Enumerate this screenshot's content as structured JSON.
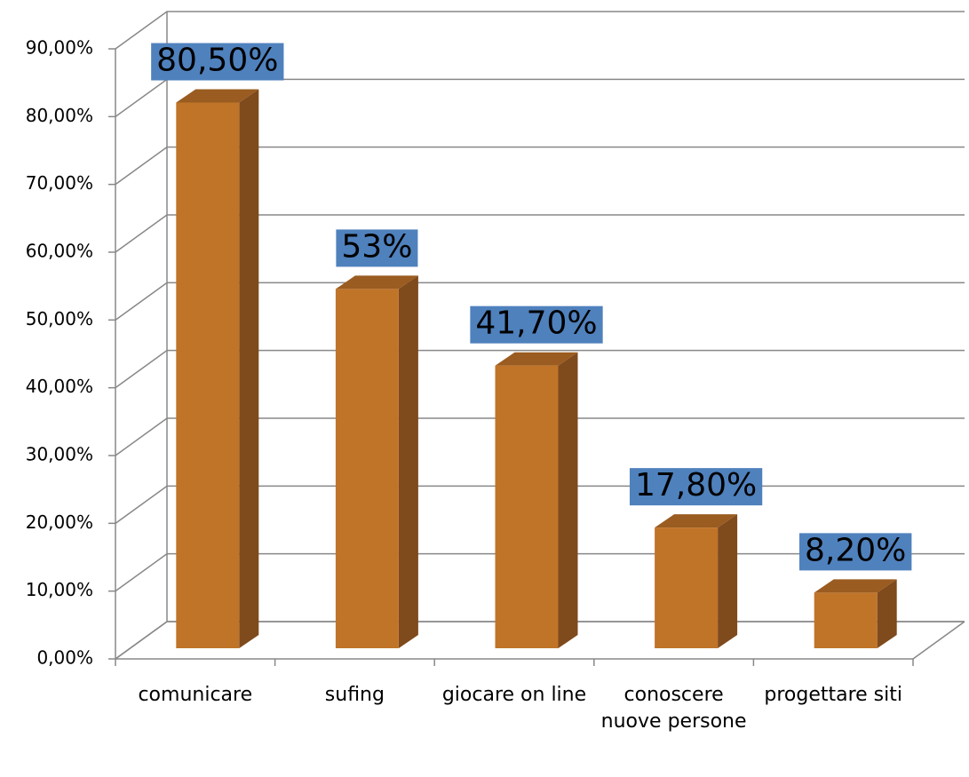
{
  "chart_data": {
    "type": "bar3d",
    "categories": [
      "comunicare",
      "sufing",
      "giocare on line",
      "conoscere nuove persone",
      "progettare siti"
    ],
    "values": [
      80.5,
      53,
      41.7,
      17.8,
      8.2
    ],
    "value_labels": [
      "80,50%",
      "53%",
      "41,70%",
      "17,80%",
      "8,20%"
    ],
    "color": "#c07428",
    "label_box_color": "#4f81bd",
    "ylim": [
      0,
      90
    ],
    "yticks": [
      {
        "value": 0,
        "label": "0,00%"
      },
      {
        "value": 10,
        "label": "10,00%"
      },
      {
        "value": 20,
        "label": "20,00%"
      },
      {
        "value": 30,
        "label": "30,00%"
      },
      {
        "value": 40,
        "label": "40,00%"
      },
      {
        "value": 50,
        "label": "50,00%"
      },
      {
        "value": 60,
        "label": "60,00%"
      },
      {
        "value": 70,
        "label": "70,00%"
      },
      {
        "value": 80,
        "label": "80,00%"
      },
      {
        "value": 90,
        "label": "90,00%"
      }
    ],
    "grid": true
  }
}
